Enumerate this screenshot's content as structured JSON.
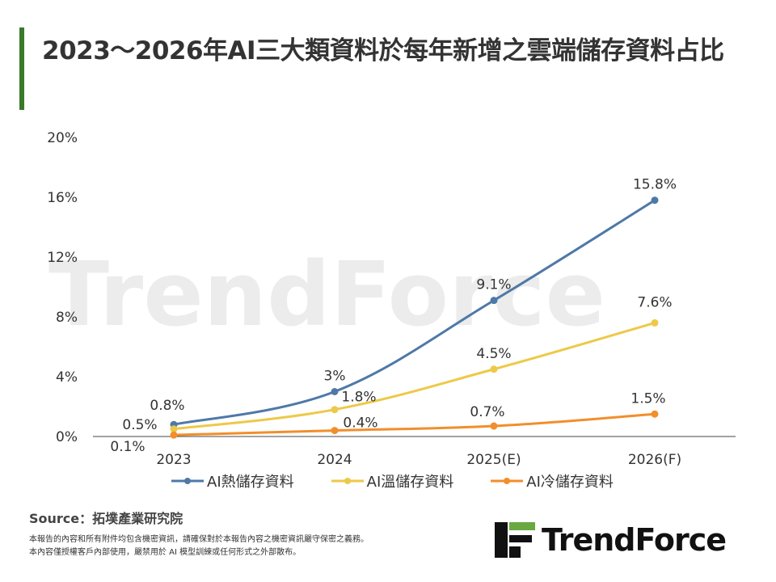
{
  "title": "2023～2026年AI三大類資料於每年新增之雲端儲存資料占比",
  "chart_data": {
    "type": "line",
    "categories": [
      "2023",
      "2024",
      "2025(E)",
      "2026(F)"
    ],
    "ylim": [
      0,
      20
    ],
    "yticks": [
      "0%",
      "4%",
      "8%",
      "12%",
      "16%",
      "20%"
    ],
    "ytick_values": [
      0,
      4,
      8,
      12,
      16,
      20
    ],
    "grid": false,
    "legend": "bottom",
    "series": [
      {
        "name": "AI熱儲存資料",
        "values": [
          0.8,
          3,
          9.1,
          15.8
        ],
        "labels": [
          "0.8%",
          "3%",
          "9.1%",
          "15.8%"
        ],
        "color": "#4e79a7"
      },
      {
        "name": "AI溫儲存資料",
        "values": [
          0.5,
          1.8,
          4.5,
          7.6
        ],
        "labels": [
          "0.5%",
          "1.8%",
          "4.5%",
          "7.6%"
        ],
        "color": "#edc948"
      },
      {
        "name": "AI冷儲存資料",
        "values": [
          0.1,
          0.4,
          0.7,
          1.5
        ],
        "labels": [
          "0.1%",
          "0.4%",
          "0.7%",
          "1.5%"
        ],
        "color": "#f28e2b"
      }
    ]
  },
  "source": "Source：拓墣產業研究院",
  "notes": [
    "本報告的內容和所有附件均包含機密資訊，請確保對於本報告內容之機密資訊嚴守保密之義務。",
    "本內容僅授權客戶內部使用，嚴禁用於 AI 模型訓練或任何形式之外部散布。"
  ],
  "logo": "TrendForce"
}
